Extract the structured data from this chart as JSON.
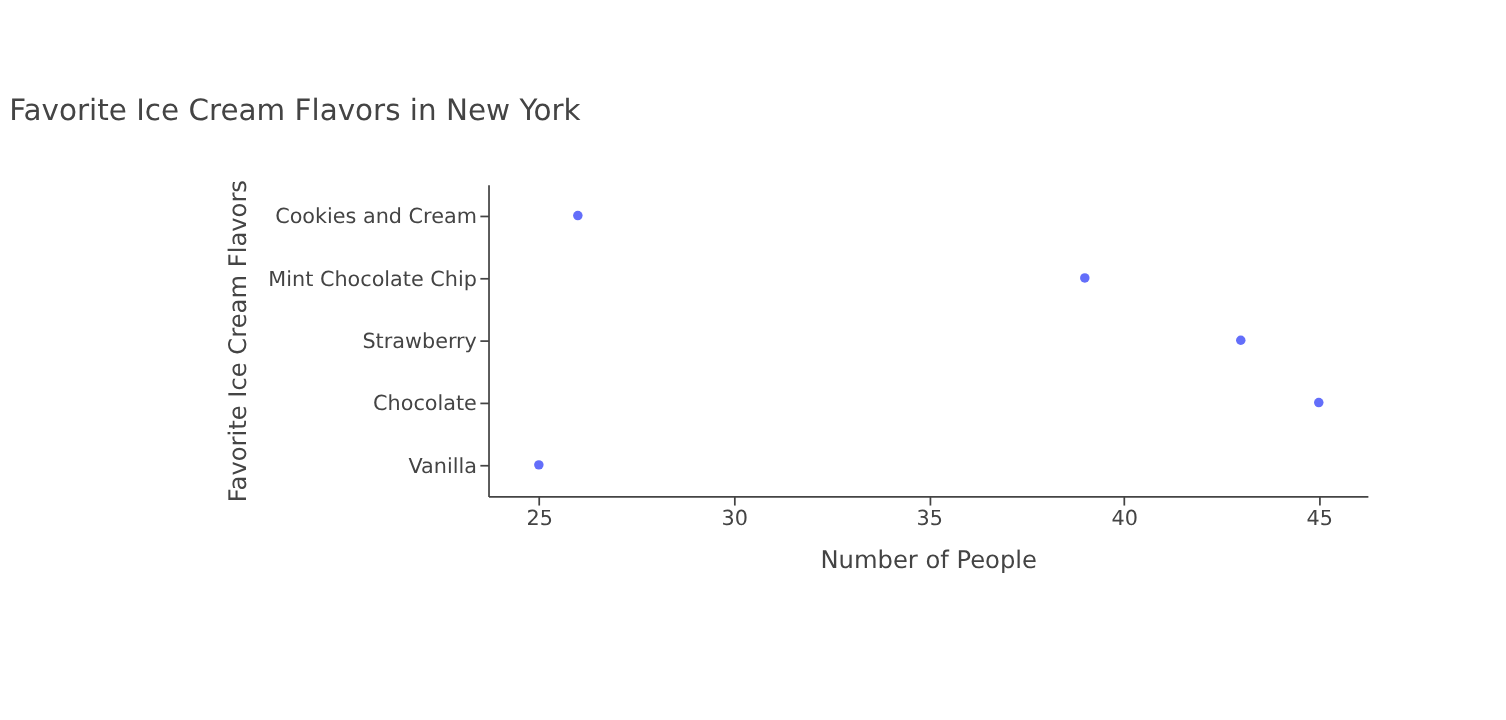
{
  "chart_data": {
    "type": "scatter",
    "orientation": "horizontal",
    "title": "Favorite Ice Cream Flavors in New York",
    "xlabel": "Number of People",
    "ylabel": "Favorite Ice Cream Flavors",
    "categories": [
      "Cookies and Cream",
      "Mint Chocolate Chip",
      "Strawberry",
      "Chocolate",
      "Vanilla"
    ],
    "series": [
      {
        "color": "#636efa",
        "values": [
          26,
          39,
          43,
          45,
          25
        ]
      }
    ],
    "xlim": [
      23.7,
      46.25
    ],
    "xticks": [
      25,
      30,
      35,
      40,
      45
    ],
    "grid": false,
    "legend": false,
    "marker": "circle"
  }
}
